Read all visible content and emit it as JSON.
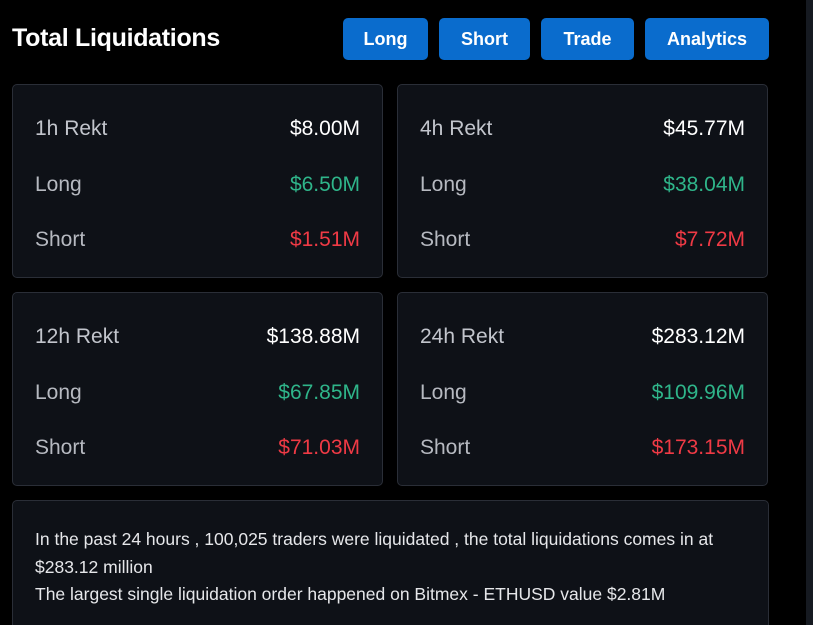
{
  "header": {
    "title": "Total Liquidations",
    "buttons": [
      {
        "label": "Long"
      },
      {
        "label": "Short"
      },
      {
        "label": "Trade"
      },
      {
        "label": "Analytics"
      }
    ]
  },
  "cards": [
    {
      "title": "1h Rekt",
      "total": "$8.00M",
      "long_label": "Long",
      "long": "$6.50M",
      "short_label": "Short",
      "short": "$1.51M"
    },
    {
      "title": "4h Rekt",
      "total": "$45.77M",
      "long_label": "Long",
      "long": "$38.04M",
      "short_label": "Short",
      "short": "$7.72M"
    },
    {
      "title": "12h Rekt",
      "total": "$138.88M",
      "long_label": "Long",
      "long": "$67.85M",
      "short_label": "Short",
      "short": "$71.03M"
    },
    {
      "title": "24h Rekt",
      "total": "$283.12M",
      "long_label": "Long",
      "long": "$109.96M",
      "short_label": "Short",
      "short": "$173.15M"
    }
  ],
  "summary": {
    "line1": "In the past 24 hours , 100,025 traders were liquidated , the total liquidations comes in at $283.12 million",
    "line2": "The largest single liquidation order happened on Bitmex - ETHUSD value $2.81M"
  },
  "colors": {
    "accent": "#0a6ccd",
    "long": "#2fb58a",
    "short": "#ef3a45",
    "card_bg": "#0e1117"
  }
}
